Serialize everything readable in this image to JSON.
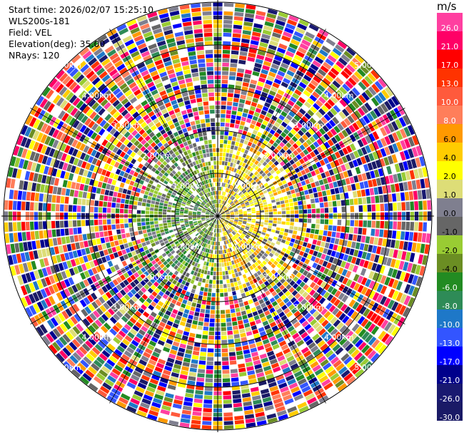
{
  "header": {
    "start_time": "Start time: 2026/02/07 15:25:10",
    "instrument": "WLS200s-181",
    "field": "Field: VEL",
    "elevation": "Elevation(deg): 35.00",
    "nrays": "NRays: 120"
  },
  "colorbar": {
    "unit": "m/s",
    "ticks": [
      "26.0",
      "21.0",
      "17.0",
      "13.0",
      "10.0",
      "8.0",
      "6.0",
      "4.0",
      "2.0",
      "1.0",
      "0.0",
      "-1.0",
      "-2.0",
      "-4.0",
      "-6.0",
      "-8.0",
      "-10.0",
      "-13.0",
      "-17.0",
      "-21.0",
      "-26.0",
      "-30.0"
    ],
    "colors": [
      "#ff3fa0",
      "#ff0066",
      "#ff0000",
      "#ff3300",
      "#ff5a3c",
      "#ff7e5a",
      "#ff9900",
      "#ffcc00",
      "#ffff00",
      "#dddd77",
      "#7f7f8f",
      "#666666",
      "#99cc33",
      "#6b8e23",
      "#228b22",
      "#2e8b57",
      "#1e78c8",
      "#3355ff",
      "#0000ff",
      "#00008b",
      "#191970",
      "#1a1a66"
    ]
  },
  "chart_data": {
    "type": "heatmap",
    "projection": "polar (PPI)",
    "field": "VEL",
    "unit": "m/s",
    "nrays": 120,
    "range_rings_km": [
      1.0,
      2.0,
      3.0,
      4.0,
      5.0
    ],
    "range_ring_labels": [
      "1.00km",
      "2.00km",
      "3.00km",
      "4.00km",
      "5.00km"
    ],
    "crosshair": true,
    "color_scale_min": -30.0,
    "color_scale_max": 26.0,
    "data_description": "near range (<~1.7 km): negative velocities (green, -1 to -6 m/s) to the west/north-west, positive velocities (yellow/orange, 2 to 6 m/s) to the east/south-east; far range: noise across the full color scale"
  }
}
